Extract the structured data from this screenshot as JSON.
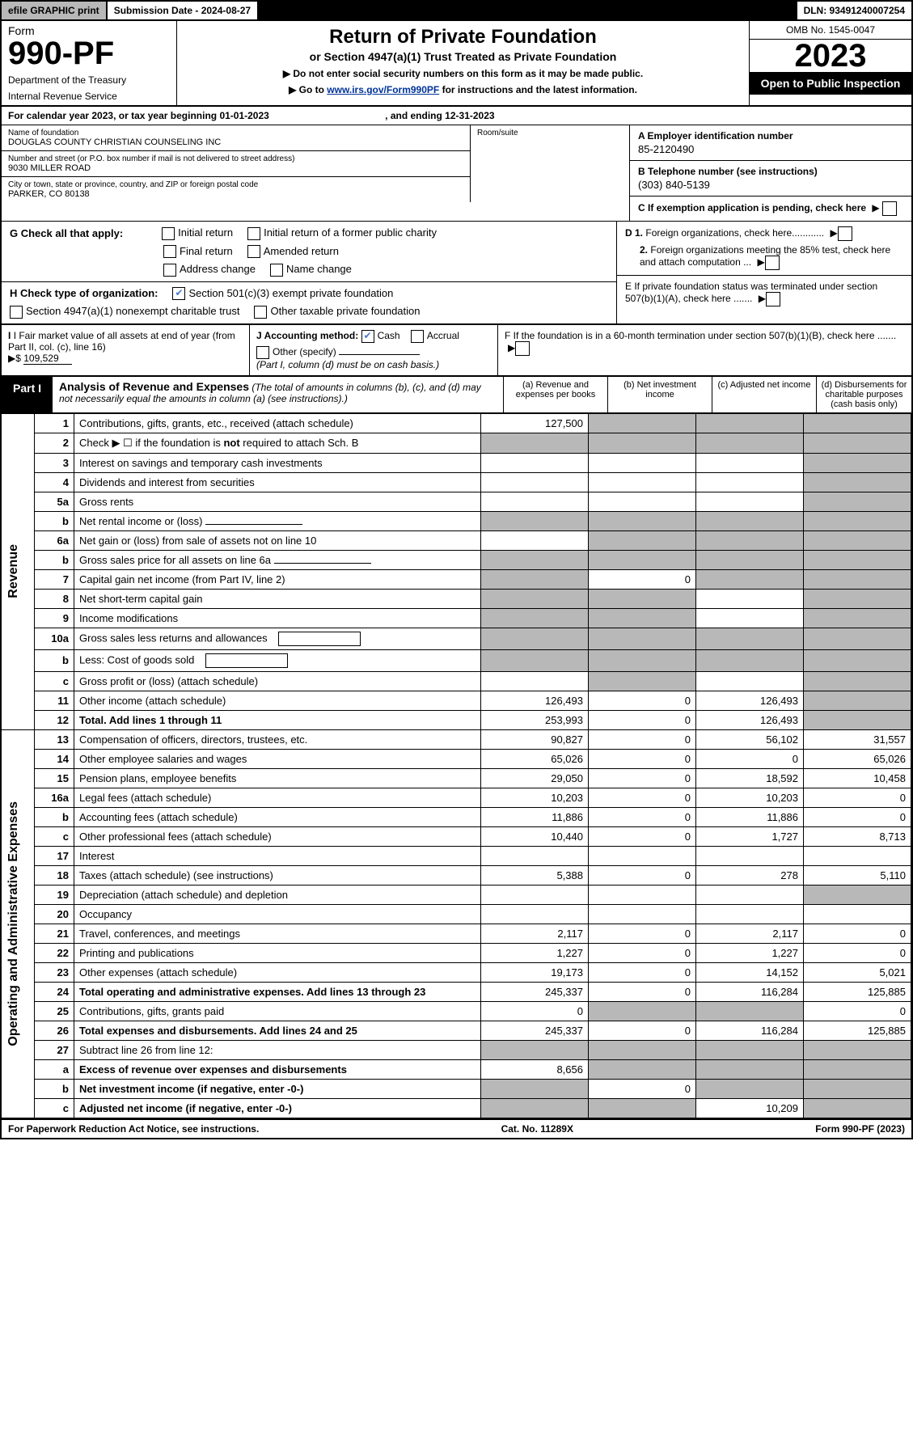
{
  "topbar": {
    "efile": "efile GRAPHIC print",
    "subdate_label": "Submission Date - 2024-08-27",
    "dln": "DLN: 93491240007254"
  },
  "header": {
    "form": "Form",
    "formno": "990-PF",
    "dept": "Department of the Treasury",
    "irs": "Internal Revenue Service",
    "title": "Return of Private Foundation",
    "subtitle": "or Section 4947(a)(1) Trust Treated as Private Foundation",
    "note1": "▶ Do not enter social security numbers on this form as it may be made public.",
    "note2_pre": "▶ Go to ",
    "note2_link": "www.irs.gov/Form990PF",
    "note2_post": " for instructions and the latest information.",
    "omb": "OMB No. 1545-0047",
    "year": "2023",
    "open": "Open to Public Inspection"
  },
  "calyear": {
    "text": "For calendar year 2023, or tax year beginning 01-01-2023",
    "ending": ", and ending 12-31-2023"
  },
  "entity": {
    "name_label": "Name of foundation",
    "name": "DOUGLAS COUNTY CHRISTIAN COUNSELING INC",
    "addr_label": "Number and street (or P.O. box number if mail is not delivered to street address)",
    "addr": "9030 MILLER ROAD",
    "room_label": "Room/suite",
    "city_label": "City or town, state or province, country, and ZIP or foreign postal code",
    "city": "PARKER, CO  80138",
    "ein_label": "A Employer identification number",
    "ein": "85-2120490",
    "phone_label": "B Telephone number (see instructions)",
    "phone": "(303) 840-5139",
    "c_label": "C If exemption application is pending, check here",
    "d1_label": "D 1. Foreign organizations, check here............",
    "d2_label": "2. Foreign organizations meeting the 85% test, check here and attach computation ...",
    "e_label": "E  If private foundation status was terminated under section 507(b)(1)(A), check here .......",
    "f_label": "F  If the foundation is in a 60-month termination under section 507(b)(1)(B), check here ......."
  },
  "g": {
    "label": "G Check all that apply:",
    "initial": "Initial return",
    "final": "Final return",
    "address": "Address change",
    "initial_former": "Initial return of a former public charity",
    "amended": "Amended return",
    "name_change": "Name change"
  },
  "h": {
    "label": "H Check type of organization:",
    "sec501": "Section 501(c)(3) exempt private foundation",
    "sec4947": "Section 4947(a)(1) nonexempt charitable trust",
    "other_tax": "Other taxable private foundation"
  },
  "i": {
    "label": "I Fair market value of all assets at end of year (from Part II, col. (c), line 16)",
    "arrow": "▶$",
    "value": "109,529"
  },
  "j": {
    "label": "J Accounting method:",
    "cash": "Cash",
    "accrual": "Accrual",
    "other": "Other (specify)",
    "note": "(Part I, column (d) must be on cash basis.)"
  },
  "part1": {
    "tab": "Part I",
    "title": "Analysis of Revenue and Expenses",
    "sub": "(The total of amounts in columns (b), (c), and (d) may not necessarily equal the amounts in column (a) (see instructions).)",
    "col_a": "(a) Revenue and expenses per books",
    "col_b": "(b) Net investment income",
    "col_c": "(c) Adjusted net income",
    "col_d": "(d) Disbursements for charitable purposes (cash basis only)"
  },
  "side": {
    "revenue": "Revenue",
    "expenses": "Operating and Administrative Expenses"
  },
  "rows": [
    {
      "n": "1",
      "desc": "Contributions, gifts, grants, etc., received (attach schedule)",
      "a": "127,500",
      "b": "",
      "c": "",
      "d": "",
      "grey": [
        "b",
        "c",
        "d"
      ]
    },
    {
      "n": "2",
      "desc": "Check ▶ ☐ if the foundation is not required to attach Sch. B",
      "a": "",
      "b": "",
      "c": "",
      "d": "",
      "grey": [
        "a",
        "b",
        "c",
        "d"
      ],
      "bold_not": true
    },
    {
      "n": "3",
      "desc": "Interest on savings and temporary cash investments",
      "a": "",
      "b": "",
      "c": "",
      "d": "",
      "grey": [
        "d"
      ]
    },
    {
      "n": "4",
      "desc": "Dividends and interest from securities",
      "a": "",
      "b": "",
      "c": "",
      "d": "",
      "grey": [
        "d"
      ]
    },
    {
      "n": "5a",
      "desc": "Gross rents",
      "a": "",
      "b": "",
      "c": "",
      "d": "",
      "grey": [
        "d"
      ]
    },
    {
      "n": "b",
      "desc": "Net rental income or (loss)",
      "a": "",
      "b": "",
      "c": "",
      "d": "",
      "grey": [
        "a",
        "b",
        "c",
        "d"
      ],
      "has_underline": true
    },
    {
      "n": "6a",
      "desc": "Net gain or (loss) from sale of assets not on line 10",
      "a": "",
      "b": "",
      "c": "",
      "d": "",
      "grey": [
        "b",
        "c",
        "d"
      ]
    },
    {
      "n": "b",
      "desc": "Gross sales price for all assets on line 6a",
      "a": "",
      "b": "",
      "c": "",
      "d": "",
      "grey": [
        "a",
        "b",
        "c",
        "d"
      ],
      "has_underline": true
    },
    {
      "n": "7",
      "desc": "Capital gain net income (from Part IV, line 2)",
      "a": "",
      "b": "0",
      "c": "",
      "d": "",
      "grey": [
        "a",
        "c",
        "d"
      ]
    },
    {
      "n": "8",
      "desc": "Net short-term capital gain",
      "a": "",
      "b": "",
      "c": "",
      "d": "",
      "grey": [
        "a",
        "b",
        "d"
      ]
    },
    {
      "n": "9",
      "desc": "Income modifications",
      "a": "",
      "b": "",
      "c": "",
      "d": "",
      "grey": [
        "a",
        "b",
        "d"
      ]
    },
    {
      "n": "10a",
      "desc": "Gross sales less returns and allowances",
      "a": "",
      "b": "",
      "c": "",
      "d": "",
      "grey": [
        "a",
        "b",
        "c",
        "d"
      ],
      "has_box": true
    },
    {
      "n": "b",
      "desc": "Less: Cost of goods sold",
      "a": "",
      "b": "",
      "c": "",
      "d": "",
      "grey": [
        "a",
        "b",
        "c",
        "d"
      ],
      "has_box": true
    },
    {
      "n": "c",
      "desc": "Gross profit or (loss) (attach schedule)",
      "a": "",
      "b": "",
      "c": "",
      "d": "",
      "grey": [
        "b",
        "d"
      ]
    },
    {
      "n": "11",
      "desc": "Other income (attach schedule)",
      "a": "126,493",
      "b": "0",
      "c": "126,493",
      "d": "",
      "grey": [
        "d"
      ]
    },
    {
      "n": "12",
      "desc": "Total. Add lines 1 through 11",
      "a": "253,993",
      "b": "0",
      "c": "126,493",
      "d": "",
      "grey": [
        "d"
      ],
      "bold": true
    },
    {
      "n": "13",
      "desc": "Compensation of officers, directors, trustees, etc.",
      "a": "90,827",
      "b": "0",
      "c": "56,102",
      "d": "31,557"
    },
    {
      "n": "14",
      "desc": "Other employee salaries and wages",
      "a": "65,026",
      "b": "0",
      "c": "0",
      "d": "65,026"
    },
    {
      "n": "15",
      "desc": "Pension plans, employee benefits",
      "a": "29,050",
      "b": "0",
      "c": "18,592",
      "d": "10,458"
    },
    {
      "n": "16a",
      "desc": "Legal fees (attach schedule)",
      "a": "10,203",
      "b": "0",
      "c": "10,203",
      "d": "0"
    },
    {
      "n": "b",
      "desc": "Accounting fees (attach schedule)",
      "a": "11,886",
      "b": "0",
      "c": "11,886",
      "d": "0"
    },
    {
      "n": "c",
      "desc": "Other professional fees (attach schedule)",
      "a": "10,440",
      "b": "0",
      "c": "1,727",
      "d": "8,713"
    },
    {
      "n": "17",
      "desc": "Interest",
      "a": "",
      "b": "",
      "c": "",
      "d": ""
    },
    {
      "n": "18",
      "desc": "Taxes (attach schedule) (see instructions)",
      "a": "5,388",
      "b": "0",
      "c": "278",
      "d": "5,110"
    },
    {
      "n": "19",
      "desc": "Depreciation (attach schedule) and depletion",
      "a": "",
      "b": "",
      "c": "",
      "d": "",
      "grey": [
        "d"
      ]
    },
    {
      "n": "20",
      "desc": "Occupancy",
      "a": "",
      "b": "",
      "c": "",
      "d": ""
    },
    {
      "n": "21",
      "desc": "Travel, conferences, and meetings",
      "a": "2,117",
      "b": "0",
      "c": "2,117",
      "d": "0"
    },
    {
      "n": "22",
      "desc": "Printing and publications",
      "a": "1,227",
      "b": "0",
      "c": "1,227",
      "d": "0"
    },
    {
      "n": "23",
      "desc": "Other expenses (attach schedule)",
      "a": "19,173",
      "b": "0",
      "c": "14,152",
      "d": "5,021"
    },
    {
      "n": "24",
      "desc": "Total operating and administrative expenses. Add lines 13 through 23",
      "a": "245,337",
      "b": "0",
      "c": "116,284",
      "d": "125,885",
      "bold": true,
      "two_line": true
    },
    {
      "n": "25",
      "desc": "Contributions, gifts, grants paid",
      "a": "0",
      "b": "",
      "c": "",
      "d": "0",
      "grey": [
        "b",
        "c"
      ]
    },
    {
      "n": "26",
      "desc": "Total expenses and disbursements. Add lines 24 and 25",
      "a": "245,337",
      "b": "0",
      "c": "116,284",
      "d": "125,885",
      "bold": true,
      "two_line": true
    },
    {
      "n": "27",
      "desc": "Subtract line 26 from line 12:",
      "a": "",
      "b": "",
      "c": "",
      "d": "",
      "grey": [
        "a",
        "b",
        "c",
        "d"
      ]
    },
    {
      "n": "a",
      "desc": "Excess of revenue over expenses and disbursements",
      "a": "8,656",
      "b": "",
      "c": "",
      "d": "",
      "grey": [
        "b",
        "c",
        "d"
      ],
      "bold": true
    },
    {
      "n": "b",
      "desc": "Net investment income (if negative, enter -0-)",
      "a": "",
      "b": "0",
      "c": "",
      "d": "",
      "grey": [
        "a",
        "c",
        "d"
      ],
      "bold": true
    },
    {
      "n": "c",
      "desc": "Adjusted net income (if negative, enter -0-)",
      "a": "",
      "b": "",
      "c": "10,209",
      "d": "",
      "grey": [
        "a",
        "b",
        "d"
      ],
      "bold": true
    }
  ],
  "footer": {
    "left": "For Paperwork Reduction Act Notice, see instructions.",
    "mid": "Cat. No. 11289X",
    "right": "Form 990-PF (2023)"
  }
}
